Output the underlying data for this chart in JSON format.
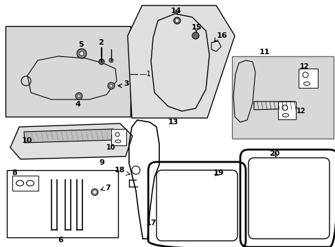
{
  "bg_color": "#ffffff",
  "line_color": "#000000",
  "box1_bg": "#d8d8d8",
  "box11_bg": "#d4d4d4",
  "figsize": [
    4.89,
    3.6
  ],
  "dpi": 100
}
